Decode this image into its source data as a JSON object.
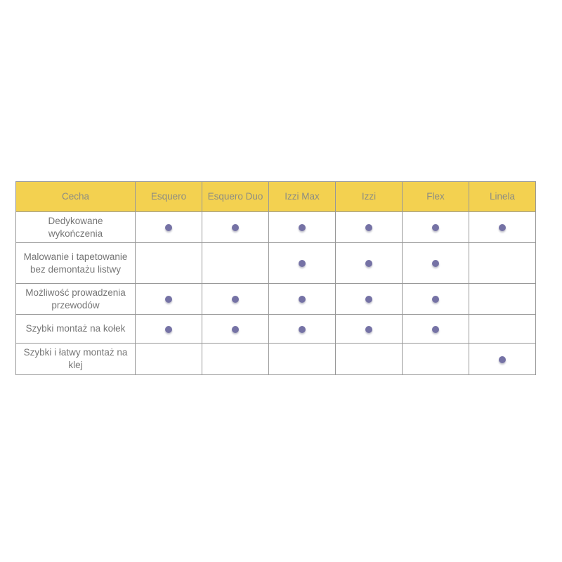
{
  "colors": {
    "header_bg": "#F3D150",
    "header_text": "#8C8D83",
    "body_text": "#767676",
    "border": "#989898",
    "dot": "#7572A5",
    "page_bg": "#FFFFFF"
  },
  "table": {
    "header": [
      "Cecha",
      "Esquero",
      "Esquero Duo",
      "Izzi Max",
      "Izzi",
      "Flex",
      "Linela"
    ],
    "dot_icon": "filled-circle",
    "rows": [
      {
        "feature": "Dedykowane wykończenia",
        "values": [
          true,
          true,
          true,
          true,
          true,
          true
        ]
      },
      {
        "feature": "Malowanie i tapetowanie bez demontażu listwy",
        "values": [
          false,
          false,
          true,
          true,
          true,
          false
        ]
      },
      {
        "feature": "Możliwość prowadzenia przewodów",
        "values": [
          true,
          true,
          true,
          true,
          true,
          false
        ]
      },
      {
        "feature": "Szybki montaż na kołek",
        "values": [
          true,
          true,
          true,
          true,
          true,
          false
        ]
      },
      {
        "feature": "Szybki i łatwy montaż na klej",
        "values": [
          false,
          false,
          false,
          false,
          false,
          true
        ]
      }
    ]
  }
}
